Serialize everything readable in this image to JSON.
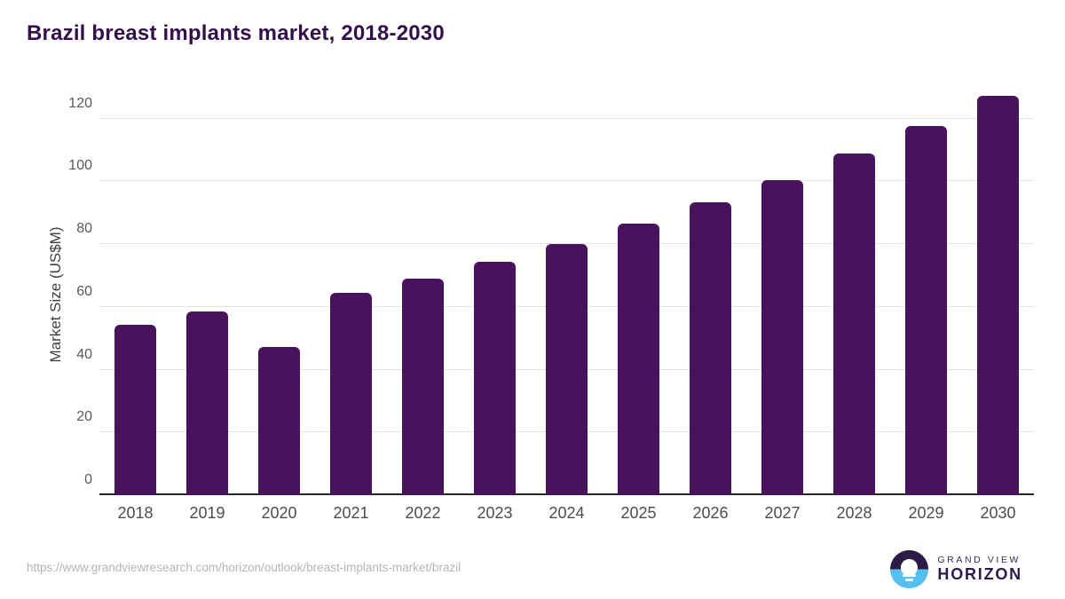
{
  "title": "Brazil breast implants market, 2018-2030",
  "footer": {
    "source_url": "https://www.grandviewresearch.com/horizon/outlook/breast-implants-market/brazil",
    "logo_line1": "GRAND VIEW",
    "logo_line2": "HORIZON"
  },
  "colors": {
    "bar": "#4a125c",
    "title_text": "#33104a",
    "gridline": "#e4e4e4",
    "axis_line": "#262626",
    "tick_text": "#595959",
    "url_text": "#b5b5b5",
    "logo_purple": "#2e1a47",
    "logo_blue": "#55c0ef"
  },
  "chart_data": {
    "type": "bar",
    "title": "Brazil breast implants market, 2018-2030",
    "categories": [
      "2018",
      "2019",
      "2020",
      "2021",
      "2022",
      "2023",
      "2024",
      "2025",
      "2026",
      "2027",
      "2028",
      "2029",
      "2030"
    ],
    "values": [
      54.3,
      58.6,
      47.2,
      64.4,
      69.0,
      74.3,
      80.1,
      86.4,
      93.3,
      100.5,
      108.8,
      117.6,
      127.3
    ],
    "xlabel": "",
    "ylabel": "Market Size (US$M)",
    "ylim": [
      0,
      129.5
    ],
    "yticks": [
      0,
      20,
      40,
      60,
      80,
      100,
      120
    ],
    "grid": true,
    "legend": false
  }
}
